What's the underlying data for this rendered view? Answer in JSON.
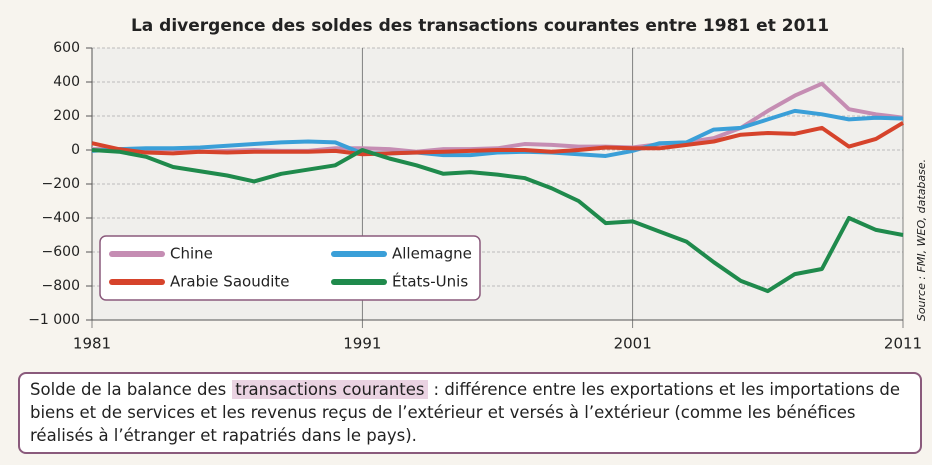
{
  "chart_data": {
    "type": "line",
    "title": "La divergence des soldes des transactions courantes entre 1981 et 2011",
    "source": "Source : FMI, WEO, database.",
    "caption": {
      "before": "Solde de la balance des",
      "term": "transactions courantes",
      "after": ": différence entre les exportations et les importations de biens et de services et les revenus reçus de l’extérieur et versés à l’extérieur (comme les bénéfices réalisés à l’étranger et rapatriés dans le pays)."
    },
    "x": [
      1981,
      1982,
      1983,
      1984,
      1985,
      1986,
      1987,
      1988,
      1989,
      1990,
      1991,
      1992,
      1993,
      1994,
      1995,
      1996,
      1997,
      1998,
      1999,
      2000,
      2001,
      2002,
      2003,
      2004,
      2005,
      2006,
      2007,
      2008,
      2009,
      2010,
      2011
    ],
    "xlim": [
      1981,
      2011
    ],
    "xticks": [
      1981,
      1991,
      2001,
      2011
    ],
    "ylim": [
      -1000,
      600
    ],
    "yticks": [
      600,
      400,
      200,
      0,
      {
        "value": -200,
        "label": "−200"
      },
      {
        "value": -400,
        "label": "−400"
      },
      {
        "value": -600,
        "label": "−600"
      },
      {
        "value": -800,
        "label": "−800"
      },
      {
        "value": -1000,
        "label": "−1 000"
      }
    ],
    "grid": true,
    "legend": "lower left",
    "series": [
      {
        "name": "Chine",
        "color": "#c58db3",
        "values": [
          5,
          5,
          5,
          5,
          -10,
          -5,
          0,
          -5,
          -5,
          10,
          10,
          5,
          -10,
          5,
          5,
          10,
          35,
          30,
          20,
          20,
          15,
          35,
          45,
          70,
          130,
          230,
          320,
          390,
          240,
          210,
          190
        ]
      },
      {
        "name": "Allemagne",
        "color": "#3a9fd8",
        "values": [
          -5,
          5,
          10,
          10,
          15,
          25,
          35,
          45,
          50,
          45,
          -20,
          -20,
          -15,
          -30,
          -30,
          -15,
          -10,
          -15,
          -25,
          -35,
          -5,
          40,
          45,
          120,
          130,
          180,
          230,
          210,
          180,
          190,
          185
        ]
      },
      {
        "name": "Arabie Saoudite",
        "color": "#d6432b",
        "values": [
          40,
          5,
          -15,
          -20,
          -10,
          -15,
          -10,
          -10,
          -10,
          -5,
          -25,
          -20,
          -15,
          -10,
          -5,
          0,
          0,
          -10,
          0,
          15,
          10,
          10,
          30,
          50,
          90,
          100,
          95,
          130,
          20,
          65,
          160
        ]
      },
      {
        "name": "États-Unis",
        "color": "#1f8a4c",
        "values": [
          0,
          -10,
          -40,
          -100,
          -125,
          -150,
          -185,
          -140,
          -115,
          -90,
          0,
          -50,
          -90,
          -140,
          -130,
          -145,
          -165,
          -225,
          -300,
          -430,
          -420,
          -480,
          -540,
          -660,
          -770,
          -830,
          -730,
          -700,
          -400,
          -470,
          -500
        ]
      }
    ]
  }
}
